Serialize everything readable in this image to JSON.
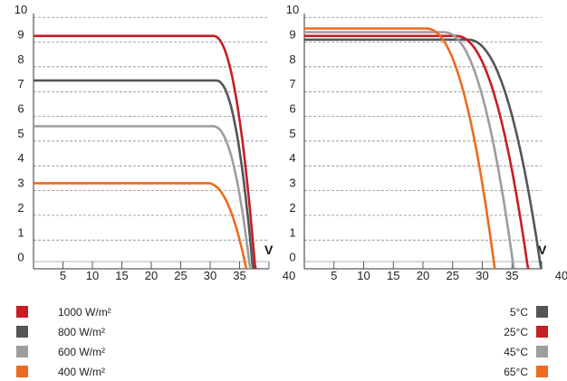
{
  "chart_data": [
    {
      "type": "line",
      "x_axis_unit": "V",
      "xlim": [
        0,
        40
      ],
      "ylim": [
        0,
        10
      ],
      "x_ticks": [
        5,
        10,
        15,
        20,
        25,
        30,
        35,
        40
      ],
      "y_ticks": [
        0,
        1,
        2,
        3,
        4,
        5,
        6,
        7,
        8,
        9,
        10
      ],
      "grid": "horizontal dashed",
      "series": [
        {
          "name": "1000 W/m²",
          "color": "#c81d25",
          "isc": 9.25,
          "voc": 37.6,
          "knee": 30.5
        },
        {
          "name": "800 W/m²",
          "color": "#555558",
          "isc": 7.45,
          "voc": 37.2,
          "knee": 31.0
        },
        {
          "name": "600 W/m²",
          "color": "#9d9d9f",
          "isc": 5.6,
          "voc": 36.7,
          "knee": 30.5
        },
        {
          "name": "400 W/m²",
          "color": "#ee6a1f",
          "isc": 3.3,
          "voc": 36.0,
          "knee": 29.5
        }
      ]
    },
    {
      "type": "line",
      "x_axis_unit": "V",
      "xlim": [
        0,
        40
      ],
      "ylim": [
        0,
        10
      ],
      "x_ticks": [
        5,
        10,
        15,
        20,
        25,
        30,
        35,
        40
      ],
      "y_ticks": [
        0,
        1,
        2,
        3,
        4,
        5,
        6,
        7,
        8,
        9,
        10
      ],
      "grid": "horizontal dashed",
      "series": [
        {
          "name": "5°C",
          "color": "#555558",
          "isc": 9.1,
          "voc": 39.8,
          "knee": 27.5
        },
        {
          "name": "25°C",
          "color": "#c81d25",
          "isc": 9.25,
          "voc": 37.6,
          "knee": 25.5
        },
        {
          "name": "45°C",
          "color": "#9d9d9f",
          "isc": 9.4,
          "voc": 35.2,
          "knee": 23.5
        },
        {
          "name": "65°C",
          "color": "#ee6a1f",
          "isc": 9.55,
          "voc": 32.0,
          "knee": 20.5
        }
      ]
    }
  ],
  "legend_left": [
    {
      "label": "1000 W/m²",
      "color": "#c81d25"
    },
    {
      "label": "800 W/m²",
      "color": "#555558"
    },
    {
      "label": "600 W/m²",
      "color": "#9d9d9f"
    },
    {
      "label": "400 W/m²",
      "color": "#ee6a1f"
    }
  ],
  "legend_right": [
    {
      "label": "5°C",
      "color": "#555558"
    },
    {
      "label": "25°C",
      "color": "#c81d25"
    },
    {
      "label": "45°C",
      "color": "#9d9d9f"
    },
    {
      "label": "65°C",
      "color": "#ee6a1f"
    }
  ]
}
